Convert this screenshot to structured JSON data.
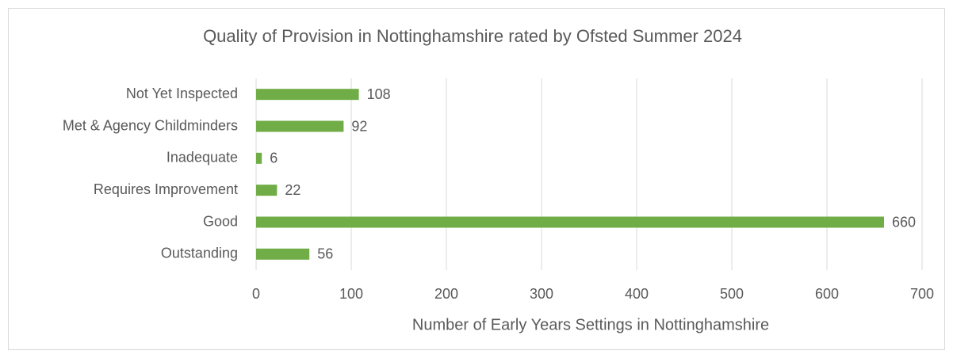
{
  "chart_data": {
    "type": "bar",
    "orientation": "horizontal",
    "title": "Quality of Provision in Nottinghamshire rated by Ofsted Summer 2024",
    "x_label": "Number of Early Years Settings in Nottinghamshire",
    "categories": [
      "Not Yet Inspected",
      "Met & Agency Childminders",
      "Inadequate",
      "Requires Improvement",
      "Good",
      "Outstanding"
    ],
    "values": [
      108,
      92,
      6,
      22,
      660,
      56
    ],
    "color": "#70ad47",
    "xlim": [
      0,
      700
    ],
    "xticks": [
      0,
      100,
      200,
      300,
      400,
      500,
      600,
      700
    ],
    "grid": true
  }
}
